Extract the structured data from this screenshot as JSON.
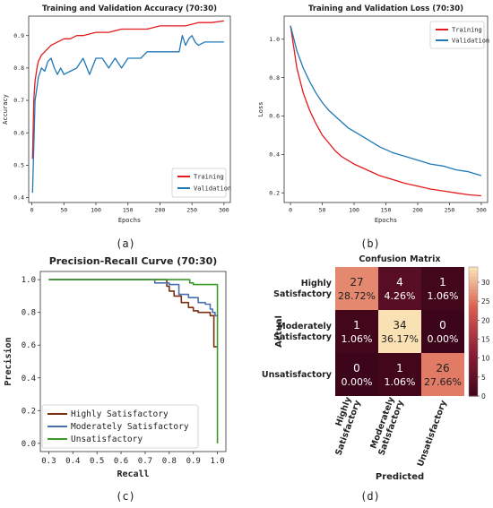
{
  "captions": [
    "(a)",
    "(b)",
    "(c)",
    "(d)"
  ],
  "chart_data": [
    {
      "type": "line",
      "title": "Training and Validation Accuracy (70:30)",
      "xlabel": "Epochs",
      "ylabel": "Accuracy",
      "xlim": [
        -5,
        310
      ],
      "ylim": [
        0.385,
        0.96
      ],
      "xticks": [
        0,
        50,
        100,
        150,
        200,
        250,
        300
      ],
      "yticks": [
        0.4,
        0.5,
        0.6,
        0.7,
        0.8,
        0.9
      ],
      "yticklabels": [
        "0.4",
        "0.5",
        "0.6",
        "0.7",
        "0.8",
        "0.9"
      ],
      "legend_position": "lower-right",
      "series": [
        {
          "name": "Training",
          "color": "#e41a1c",
          "x": [
            1,
            3,
            5,
            8,
            10,
            15,
            20,
            25,
            30,
            40,
            50,
            60,
            70,
            80,
            100,
            120,
            140,
            160,
            180,
            200,
            220,
            240,
            260,
            280,
            300
          ],
          "y": [
            0.52,
            0.7,
            0.76,
            0.8,
            0.82,
            0.84,
            0.85,
            0.86,
            0.87,
            0.88,
            0.89,
            0.89,
            0.9,
            0.9,
            0.91,
            0.91,
            0.92,
            0.92,
            0.92,
            0.93,
            0.93,
            0.93,
            0.94,
            0.94,
            0.945
          ]
        },
        {
          "name": "Validation",
          "color": "#1f78b4",
          "x": [
            1,
            5,
            8,
            10,
            15,
            20,
            25,
            30,
            35,
            40,
            45,
            50,
            60,
            70,
            80,
            90,
            100,
            110,
            120,
            130,
            140,
            150,
            160,
            170,
            180,
            190,
            200,
            210,
            220,
            225,
            230,
            235,
            240,
            245,
            250,
            255,
            260,
            270,
            280,
            290,
            300
          ],
          "y": [
            0.415,
            0.7,
            0.74,
            0.77,
            0.8,
            0.79,
            0.82,
            0.83,
            0.8,
            0.78,
            0.8,
            0.78,
            0.79,
            0.8,
            0.83,
            0.78,
            0.83,
            0.83,
            0.8,
            0.83,
            0.8,
            0.83,
            0.83,
            0.83,
            0.85,
            0.85,
            0.85,
            0.85,
            0.85,
            0.85,
            0.85,
            0.9,
            0.87,
            0.89,
            0.9,
            0.88,
            0.87,
            0.88,
            0.88,
            0.88,
            0.88
          ]
        }
      ]
    },
    {
      "type": "line",
      "title": "Training and Validation Loss (70:30)",
      "xlabel": "Epochs",
      "ylabel": "Loss",
      "xlim": [
        -10,
        310
      ],
      "ylim": [
        0.15,
        1.12
      ],
      "xticks": [
        0,
        50,
        100,
        150,
        200,
        250,
        300
      ],
      "yticks": [
        0.2,
        0.4,
        0.6,
        0.8,
        1.0
      ],
      "yticklabels": [
        "0.2",
        "0.4",
        "0.6",
        "0.8",
        "1.0"
      ],
      "legend_position": "upper-right",
      "series": [
        {
          "name": "Training",
          "color": "#e41a1c",
          "x": [
            0,
            10,
            20,
            30,
            40,
            50,
            60,
            70,
            80,
            90,
            100,
            120,
            140,
            160,
            180,
            200,
            220,
            240,
            260,
            280,
            300
          ],
          "y": [
            1.07,
            0.85,
            0.72,
            0.63,
            0.56,
            0.5,
            0.46,
            0.42,
            0.39,
            0.37,
            0.35,
            0.32,
            0.29,
            0.27,
            0.25,
            0.235,
            0.22,
            0.21,
            0.2,
            0.19,
            0.185
          ]
        },
        {
          "name": "Validation",
          "color": "#1f78b4",
          "x": [
            0,
            10,
            20,
            30,
            40,
            50,
            60,
            70,
            80,
            90,
            100,
            120,
            140,
            160,
            180,
            200,
            220,
            240,
            260,
            280,
            300
          ],
          "y": [
            1.07,
            0.94,
            0.85,
            0.78,
            0.72,
            0.67,
            0.63,
            0.6,
            0.57,
            0.54,
            0.52,
            0.48,
            0.44,
            0.41,
            0.39,
            0.37,
            0.35,
            0.34,
            0.32,
            0.31,
            0.29
          ]
        }
      ]
    },
    {
      "type": "line",
      "title": "Precision-Recall Curve (70:30)",
      "xlabel": "Recall",
      "ylabel": "Precision",
      "xlim": [
        0.265,
        1.035
      ],
      "ylim": [
        -0.05,
        1.05
      ],
      "xticks": [
        0.3,
        0.4,
        0.5,
        0.6,
        0.7,
        0.8,
        0.9,
        1.0
      ],
      "xticklabels": [
        "0.3",
        "0.4",
        "0.5",
        "0.6",
        "0.7",
        "0.8",
        "0.9",
        "1.0"
      ],
      "yticks": [
        0.0,
        0.2,
        0.4,
        0.6,
        0.8,
        1.0
      ],
      "yticklabels": [
        "0.0",
        "0.2",
        "0.4",
        "0.6",
        "0.8",
        "1.0"
      ],
      "legend_position": "lower-left",
      "series": [
        {
          "name": "Highly Satisfactory",
          "color": "#7b2d12",
          "x": [
            0.3,
            0.78,
            0.79,
            0.8,
            0.82,
            0.85,
            0.88,
            0.9,
            0.92,
            0.96,
            0.97,
            0.985,
            1.0
          ],
          "y": [
            1.0,
            1.0,
            0.96,
            0.93,
            0.9,
            0.86,
            0.83,
            0.81,
            0.8,
            0.8,
            0.78,
            0.59,
            0.59
          ]
        },
        {
          "name": "Moderately Satisfactory",
          "color": "#4a6fb0",
          "x": [
            0.3,
            0.74,
            0.8,
            0.84,
            0.88,
            0.92,
            0.95,
            0.97,
            0.98,
            0.99,
            1.0
          ],
          "y": [
            1.0,
            0.98,
            0.97,
            0.91,
            0.89,
            0.86,
            0.85,
            0.82,
            0.8,
            0.78,
            0.77
          ]
        },
        {
          "name": "Unsatisfactory",
          "color": "#3c9a2a",
          "x": [
            0.3,
            0.88,
            0.885,
            0.9,
            0.95,
            0.98,
            0.99,
            1.0,
            1.0
          ],
          "y": [
            1.0,
            1.0,
            0.98,
            0.97,
            0.97,
            0.97,
            0.97,
            0.97,
            0.0
          ]
        }
      ]
    },
    {
      "type": "heatmap",
      "title": "Confusion Matrix",
      "xlabel": "Predicted",
      "ylabel": "Actual",
      "row_labels": [
        [
          "Highly",
          "Satisfactory"
        ],
        [
          "Moderately",
          "Satisfactory"
        ],
        [
          "Unsatisfactory"
        ]
      ],
      "col_labels": [
        [
          "Highly",
          "Satisfactory"
        ],
        [
          "Moderately",
          "Satisfactory"
        ],
        [
          "Unsatisfactory"
        ]
      ],
      "matrix": [
        [
          27,
          4,
          1
        ],
        [
          1,
          34,
          0
        ],
        [
          0,
          1,
          26
        ]
      ],
      "percentages": [
        [
          "28.72%",
          "4.26%",
          "1.06%"
        ],
        [
          "1.06%",
          "36.17%",
          "0.00%"
        ],
        [
          "0.00%",
          "1.06%",
          "27.66%"
        ]
      ],
      "colorbar": {
        "min": 0,
        "max": 34,
        "ticks": [
          0,
          5,
          10,
          15,
          20,
          25,
          30
        ]
      }
    }
  ]
}
